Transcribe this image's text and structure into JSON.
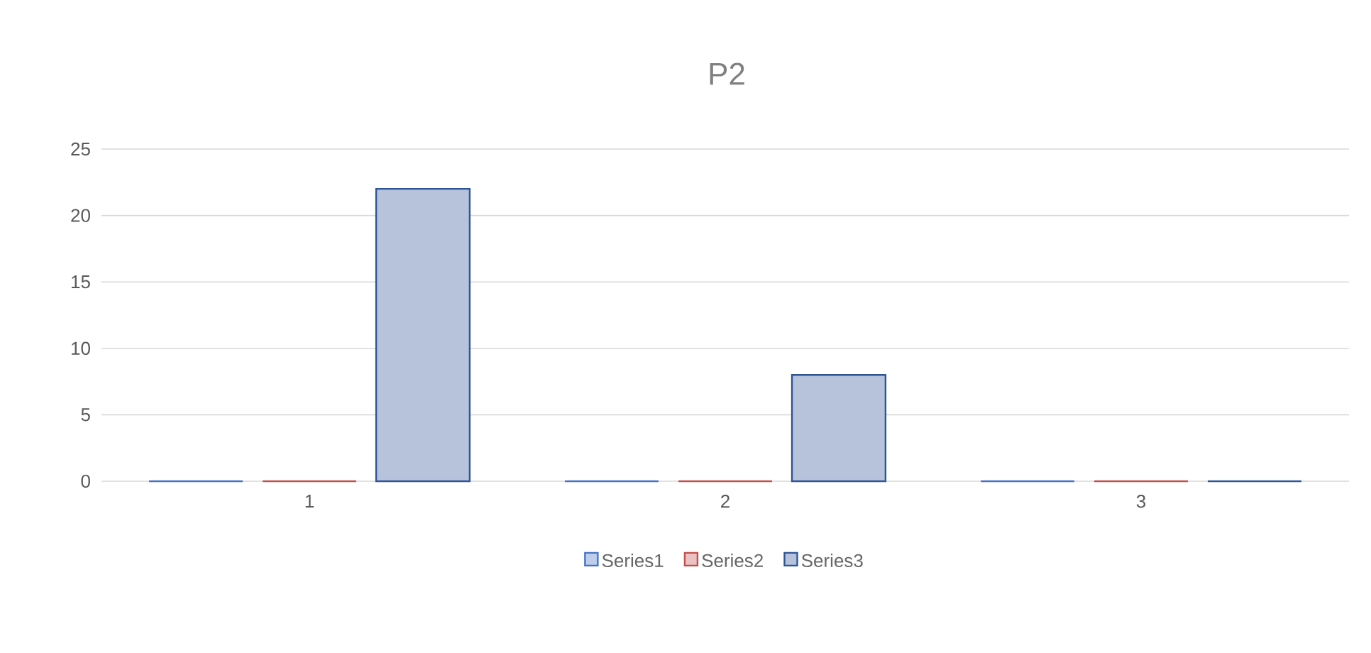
{
  "chart_data": {
    "type": "bar",
    "title": "P2",
    "categories": [
      "1",
      "2",
      "3"
    ],
    "series": [
      {
        "name": "Series1",
        "color": "#4472c4",
        "values": [
          0,
          0,
          0
        ]
      },
      {
        "name": "Series2",
        "color": "#c0504d",
        "values": [
          0,
          0,
          0
        ]
      },
      {
        "name": "Series3",
        "color": "#2f5597",
        "values": [
          22,
          8,
          0
        ]
      }
    ],
    "ylim": [
      0,
      25
    ],
    "yticks": [
      0,
      5,
      10,
      15,
      20,
      25
    ],
    "grid": "y",
    "legend": "bottom"
  }
}
